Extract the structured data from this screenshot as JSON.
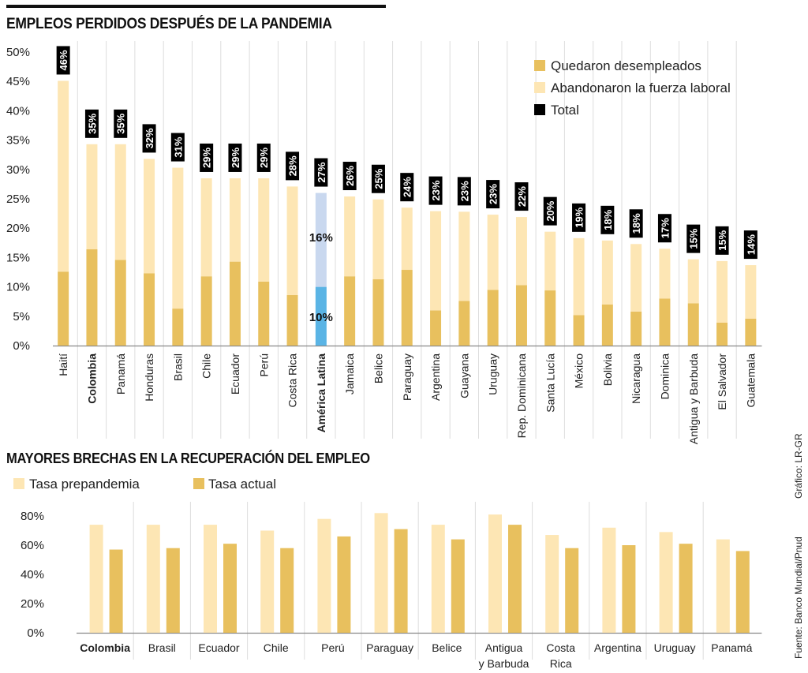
{
  "colors": {
    "unemployed": "#e8c05e",
    "left_labor_force": "#fde6b4",
    "total_label_bg": "#000000",
    "latam_unemployed": "#5ab4e5",
    "latam_left": "#c9d8ef",
    "prepandemic": "#fde6b4",
    "current": "#e8c05e",
    "grid": "#dddddd",
    "axis": "#888888"
  },
  "credits": {
    "graphic": "Gráfico: LR-GR",
    "source": "Fuente: Banco Mundial/Pnud"
  },
  "chart_data": [
    {
      "type": "bar",
      "stacked": true,
      "title": "EMPLEOS PERDIDOS DESPUÉS DE LA PANDEMIA",
      "xlabel": "",
      "ylabel": "",
      "ylim": [
        0,
        50
      ],
      "yticks": [
        "0%",
        "5%",
        "10%",
        "15%",
        "20%",
        "25%",
        "30%",
        "35%",
        "40%",
        "45%",
        "50%"
      ],
      "grid": true,
      "legend_position": "top-right",
      "legend": [
        "Quedaron desempleados",
        "Abandonaron la fuerza laboral",
        "Total"
      ],
      "highlight_bold": [
        "Colombia",
        "América Latina"
      ],
      "highlight_color_category": "América Latina",
      "categories": [
        "Haití",
        "Colombia",
        "Panamá",
        "Honduras",
        "Brasil",
        "Chile",
        "Ecuador",
        "Perú",
        "Costa Rica",
        "América Latina",
        "Jamaica",
        "Belice",
        "Paraguay",
        "Argentina",
        "Guayana",
        "Uruguay",
        "Rep. Dominicana",
        "Santa Lucía",
        "México",
        "Bolivia",
        "Nicaragua",
        "Dominica",
        "Antigua y Barbuda",
        "El Salvador",
        "Guatemala"
      ],
      "series": [
        {
          "name": "Quedaron desempleados",
          "values": [
            12.6,
            16.4,
            14.6,
            12.3,
            6.3,
            11.8,
            14.3,
            10.9,
            8.6,
            10,
            11.8,
            11.3,
            12.9,
            6.0,
            7.6,
            9.5,
            10.3,
            9.4,
            5.2,
            7.0,
            5.8,
            8.0,
            7.2,
            3.9,
            4.6
          ]
        },
        {
          "name": "Abandonaron la fuerza laboral",
          "values": [
            32.5,
            17.9,
            19.7,
            19.5,
            24.0,
            16.7,
            14.2,
            17.6,
            18.5,
            16,
            13.6,
            13.6,
            10.6,
            16.9,
            15.2,
            12.8,
            11.6,
            10.0,
            13.1,
            10.9,
            11.5,
            8.5,
            7.5,
            10.5,
            9.1
          ]
        }
      ],
      "totals": [
        "46%",
        "35%",
        "35%",
        "32%",
        "31%",
        "29%",
        "29%",
        "29%",
        "28%",
        "27%",
        "26%",
        "25%",
        "24%",
        "23%",
        "23%",
        "23%",
        "22%",
        "20%",
        "19%",
        "18%",
        "18%",
        "17%",
        "15%",
        "15%",
        "14%"
      ],
      "inbar_labels": {
        "category": "América Latina",
        "unemployed": "10%",
        "left_labor_force": "16%"
      }
    },
    {
      "type": "bar",
      "stacked": false,
      "title": "MAYORES BRECHAS EN LA RECUPERACIÓN DEL EMPLEO",
      "xlabel": "",
      "ylabel": "",
      "ylim": [
        0,
        80
      ],
      "yticks": [
        "0%",
        "20%",
        "40%",
        "60%",
        "80%"
      ],
      "grid": true,
      "legend_position": "top-left",
      "legend": [
        "Tasa prepandemia",
        "Tasa actual"
      ],
      "highlight_bold": [
        "Colombia"
      ],
      "categories": [
        "Colombia",
        "Brasil",
        "Ecuador",
        "Chile",
        "Perú",
        "Paraguay",
        "Belice",
        "Antigua\ny Barbuda",
        "Costa\nRica",
        "Argentina",
        "Uruguay",
        "Panamá"
      ],
      "series": [
        {
          "name": "Tasa prepandemia",
          "values": [
            74,
            74,
            74,
            70,
            78,
            82,
            74,
            81,
            67,
            72,
            69,
            64
          ]
        },
        {
          "name": "Tasa actual",
          "values": [
            57,
            58,
            61,
            58,
            66,
            71,
            64,
            74,
            58,
            60,
            61,
            56
          ]
        }
      ]
    }
  ]
}
